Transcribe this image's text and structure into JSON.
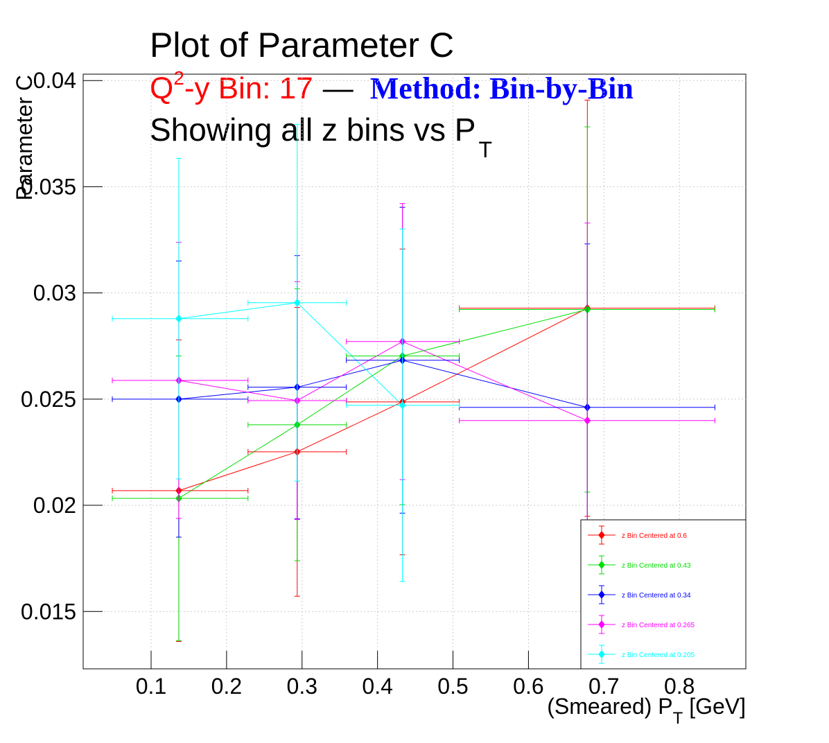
{
  "chart_data": {
    "type": "errorbar",
    "title": "Plot of Parameter C",
    "subtitle": {
      "bin_label": [
        "Q",
        "2",
        "-y Bin: 17"
      ],
      "separator": "—",
      "method": "Method: Bin-by-Bin"
    },
    "note": [
      "Showing all z bins vs P",
      "T"
    ],
    "x_label": [
      "(Smeared) P",
      "T",
      " [GeV]"
    ],
    "y_label": "Parameter C",
    "x": [
      0.1367,
      0.2936,
      0.433,
      0.678
    ],
    "x_bins": [
      0.0486,
      0.2284,
      0.3587,
      0.5083,
      0.847
    ],
    "series": [
      {
        "name": "z Bin Centered at 0.6",
        "color": "#ff0000",
        "values": [
          0.02069,
          0.02252,
          0.02487,
          0.02928
        ],
        "errors": [
          0.0071,
          0.0068,
          0.0072,
          0.0098
        ]
      },
      {
        "name": "z Bin Centered at 0.43",
        "color": "#00dd00",
        "values": [
          0.02033,
          0.02379,
          0.02703,
          0.02922
        ],
        "errors": [
          0.0067,
          0.0064,
          0.007,
          0.0086
        ]
      },
      {
        "name": "z Bin Centered at 0.34",
        "color": "#0000ff",
        "values": [
          0.025,
          0.02556,
          0.02683,
          0.02461
        ],
        "errors": [
          0.0065,
          0.0062,
          0.0072,
          0.0077
        ]
      },
      {
        "name": "z Bin Centered at 0.265",
        "color": "#ff00ff",
        "values": [
          0.02588,
          0.02493,
          0.02771,
          0.02399
        ],
        "errors": [
          0.0065,
          0.0056,
          0.0065,
          0.0093
        ]
      },
      {
        "name": "z Bin Centered at 0.205",
        "color": "#00ffff",
        "values": [
          0.02879,
          0.02954,
          0.02471,
          null
        ],
        "errors": [
          0.00755,
          0.0084,
          0.0083,
          null
        ]
      }
    ],
    "xlim": [
      0.01,
      0.888
    ],
    "ylim": [
      0.0123,
      0.0403
    ],
    "xticks": [
      0.1,
      0.2,
      0.3,
      0.4,
      0.5,
      0.6,
      0.7,
      0.8
    ],
    "yticks": [
      0.015,
      0.02,
      0.025,
      0.03,
      0.035,
      0.04
    ],
    "grid": true,
    "legend": "bottom right"
  }
}
